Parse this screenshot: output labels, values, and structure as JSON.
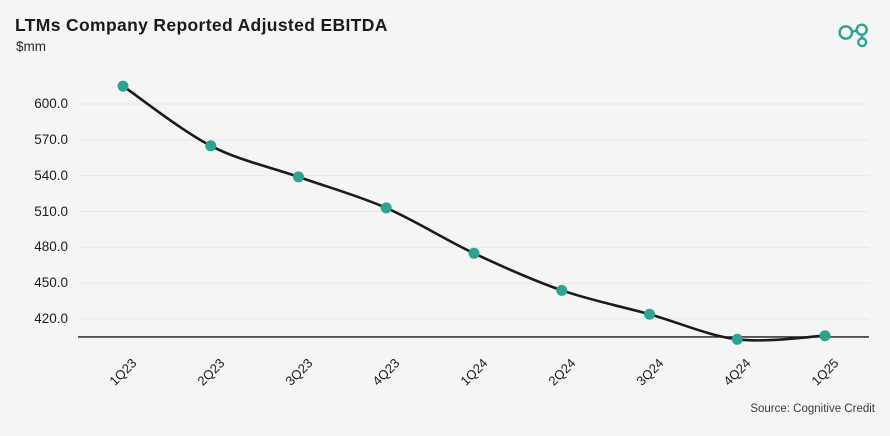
{
  "header": {
    "title": "LTMs Company Reported Adjusted EBITDA",
    "unit": "$mm"
  },
  "logo": {
    "name": "cognitive-credit-logo",
    "color": "#2BA492"
  },
  "footer": {
    "source": "Source: Cognitive Credit"
  },
  "chart_data": {
    "type": "line",
    "title": "LTMs Company Reported Adjusted EBITDA",
    "ylabel": "$mm",
    "categories": [
      "1Q23",
      "2Q23",
      "3Q23",
      "4Q23",
      "1Q24",
      "2Q24",
      "3Q24",
      "4Q24",
      "1Q25"
    ],
    "values": [
      615,
      565,
      539,
      513,
      475,
      444,
      424,
      403,
      406
    ],
    "y_ticks": [
      600,
      570,
      540,
      510,
      480,
      450,
      420
    ],
    "y_tick_labels": [
      "600.0",
      "570.0",
      "540.0",
      "510.0",
      "480.0",
      "450.0",
      "420.0"
    ],
    "ylim": [
      405,
      622
    ],
    "grid": true,
    "legend": false,
    "line_color": "#1B1B1B",
    "marker_color": "#2BA492",
    "background_color": "#F5F5F5",
    "gridline_color": "#E8E8EA",
    "axis_line_color": "#1A1A1A"
  }
}
